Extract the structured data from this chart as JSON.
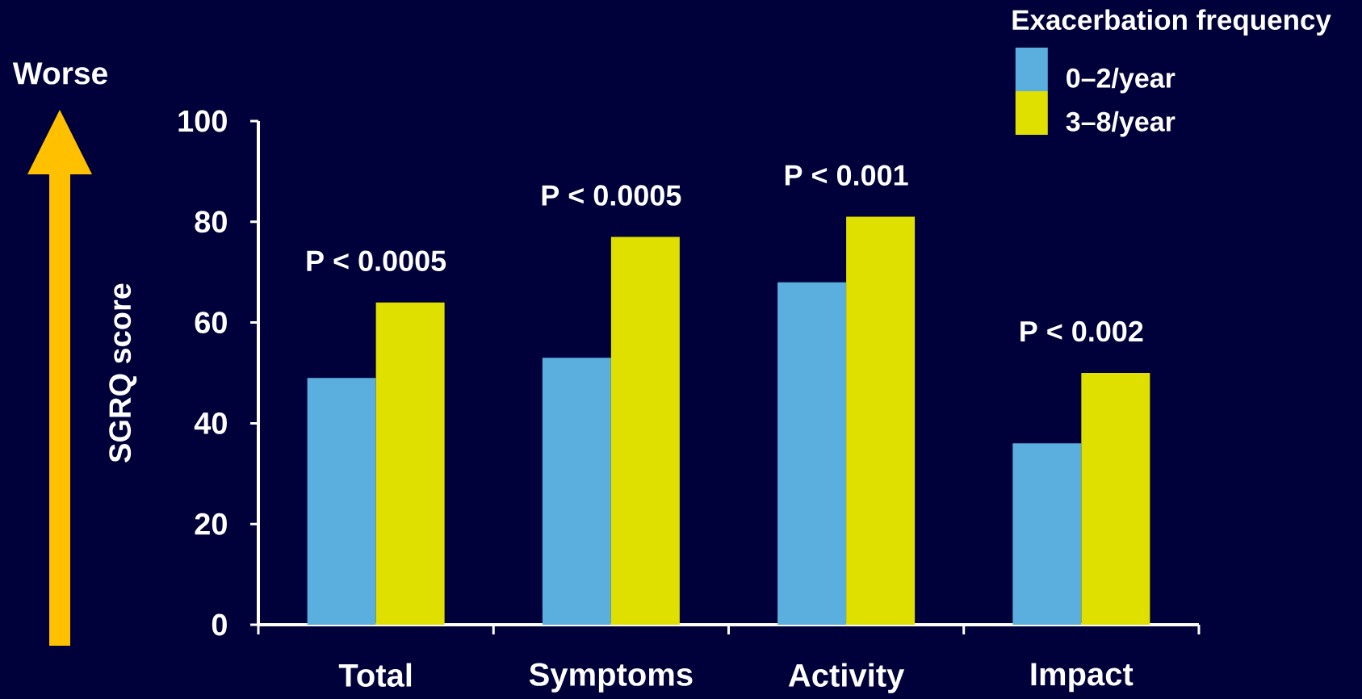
{
  "chart_data": {
    "type": "bar",
    "categories": [
      "Total",
      "Symptoms",
      "Activity",
      "Impact"
    ],
    "ylabel": "SGRQ score",
    "legend_title": "Exacerbation frequency",
    "series": [
      {
        "name": "0–2/year",
        "color": "#5aafdf",
        "values": [
          49,
          53,
          68,
          36
        ]
      },
      {
        "name": "3–8/year",
        "color": "#e0e000",
        "values": [
          64,
          77,
          81,
          50
        ]
      }
    ],
    "ylim": [
      0,
      100
    ],
    "yticks": [
      0,
      20,
      40,
      60,
      80,
      100
    ],
    "legend": "top right",
    "annotations": [
      "Worse",
      "P < 0.0005",
      "P < 0.0005",
      "P < 0.001",
      "P < 0.002"
    ]
  }
}
